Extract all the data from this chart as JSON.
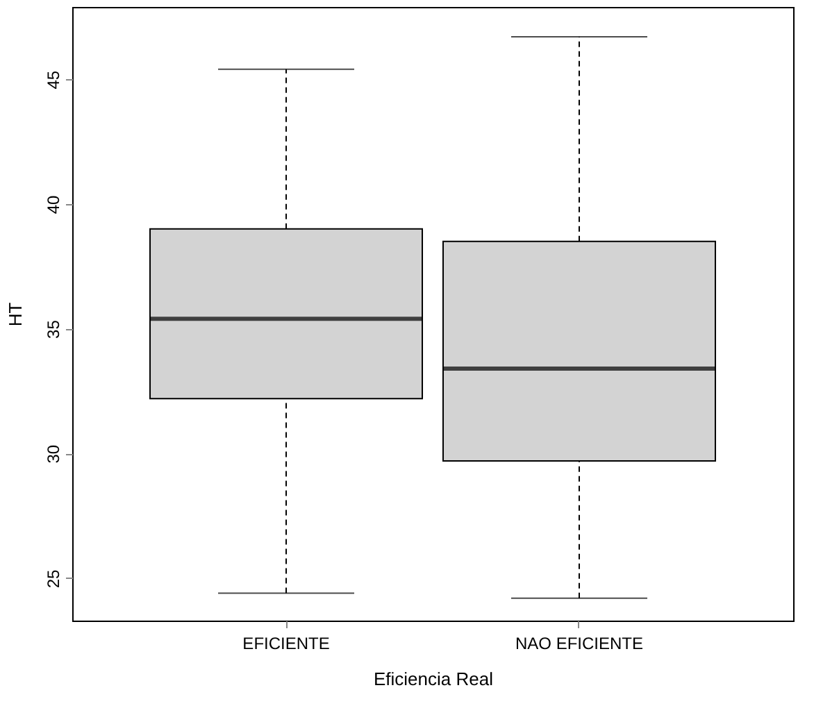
{
  "chart_data": {
    "type": "box",
    "xlabel": "Eficiencia  Real",
    "ylabel": "HT",
    "categories": [
      "EFICIENTE",
      "NAO EFICIENTE"
    ],
    "series": [
      {
        "color": "#d3d3d3",
        "boxes": [
          {
            "low": 24.4,
            "q1": 32.2,
            "median": 35.4,
            "q3": 39.0,
            "high": 45.4
          },
          {
            "low": 24.2,
            "q1": 29.7,
            "median": 33.4,
            "q3": 38.5,
            "high": 46.7
          }
        ]
      }
    ],
    "ylim": [
      23.3,
      47.9
    ],
    "yticks": [
      25,
      30,
      35,
      40,
      45
    ]
  }
}
